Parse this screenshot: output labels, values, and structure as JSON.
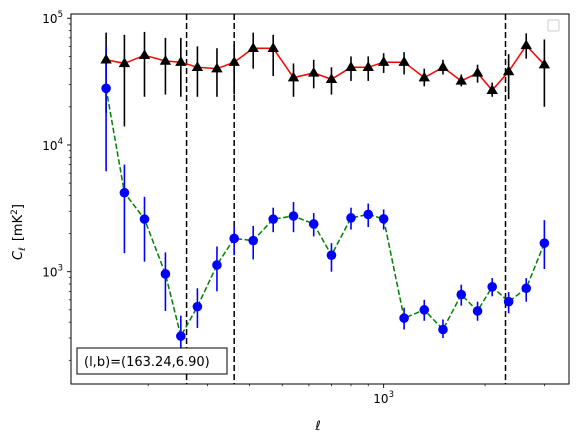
{
  "chart_data": {
    "type": "scatter",
    "title": "",
    "xlabel": "ℓ",
    "ylabel_main": "C",
    "ylabel_sub": "ℓ",
    "ylabel_unit_pre": "[mK",
    "ylabel_unit_sup": "2",
    "ylabel_unit_post": "]",
    "xscale": "log",
    "yscale": "log",
    "xlim": [
      118,
      3550
    ],
    "ylim": [
      130,
      108000
    ],
    "grid": false,
    "legend": "top-right (empty)",
    "x_tick_labels": [
      {
        "value": 1000,
        "base": "10",
        "exp": "3"
      }
    ],
    "y_tick_labels": [
      {
        "value": 1000,
        "base": "10",
        "exp": "3"
      },
      {
        "value": 10000,
        "base": "10",
        "exp": "4"
      },
      {
        "value": 100000,
        "base": "10",
        "exp": "5"
      }
    ],
    "vlines": [
      260,
      360,
      2300
    ],
    "annotation": "(l,b)=(163.24,6.90)",
    "series": [
      {
        "color": "#000000",
        "line_color": "#ff0000",
        "line_style": "solid",
        "marker": "triangle",
        "x": [
          150,
          170,
          195,
          225,
          250,
          280,
          320,
          360,
          410,
          470,
          540,
          620,
          700,
          800,
          900,
          1000,
          1150,
          1320,
          1500,
          1700,
          1900,
          2100,
          2350,
          2650,
          3000
        ],
        "y": [
          47000,
          44000,
          51000,
          46000,
          45000,
          41000,
          40000,
          45000,
          58000,
          58000,
          34000,
          37000,
          33000,
          41000,
          41000,
          45000,
          45000,
          34000,
          41000,
          32000,
          37000,
          27000,
          38000,
          61000,
          43000
        ],
        "y_low": [
          18000,
          14000,
          24000,
          25000,
          24000,
          24000,
          24000,
          25000,
          40000,
          35000,
          24000,
          28000,
          25000,
          32000,
          32000,
          37000,
          36000,
          29000,
          36000,
          29000,
          31000,
          24000,
          23000,
          48000,
          20000
        ],
        "y_high": [
          77000,
          74000,
          78000,
          70000,
          70000,
          60000,
          58000,
          62000,
          77000,
          74000,
          44000,
          47000,
          41000,
          50000,
          50000,
          53000,
          54000,
          40000,
          47000,
          36000,
          43000,
          31000,
          52000,
          76000,
          68000
        ]
      },
      {
        "color": "#0000ff",
        "line_color": "#008000",
        "line_style": "dashed",
        "marker": "circle",
        "x": [
          150,
          170,
          195,
          225,
          250,
          280,
          320,
          360,
          410,
          470,
          540,
          620,
          700,
          800,
          900,
          1000,
          1150,
          1320,
          1500,
          1700,
          1900,
          2100,
          2350,
          2650,
          3000
        ],
        "y": [
          28000,
          4200,
          2600,
          960,
          310,
          530,
          1130,
          1830,
          1760,
          2600,
          2750,
          2380,
          1350,
          2660,
          2830,
          2610,
          430,
          500,
          350,
          660,
          490,
          760,
          580,
          740,
          1680
        ],
        "y_low": [
          6200,
          1400,
          1200,
          490,
          210,
          360,
          700,
          1350,
          1250,
          2050,
          2050,
          1900,
          1000,
          2150,
          2250,
          2150,
          350,
          410,
          300,
          540,
          410,
          640,
          470,
          580,
          1050
        ],
        "y_high": [
          60000,
          7000,
          3900,
          1420,
          450,
          740,
          1580,
          2300,
          2300,
          3200,
          3550,
          2900,
          1680,
          3200,
          3450,
          3100,
          520,
          600,
          420,
          790,
          580,
          890,
          690,
          890,
          2550
        ]
      }
    ]
  }
}
